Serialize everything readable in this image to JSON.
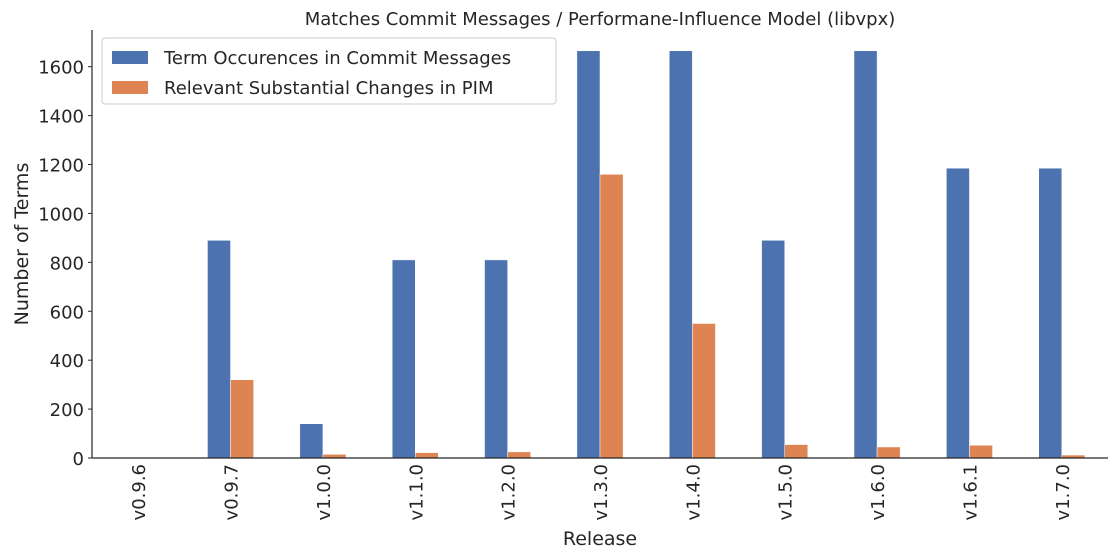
{
  "chart_data": {
    "type": "bar",
    "title": "Matches Commit Messages / Performane-Influence Model (libvpx)",
    "x_label": "Release",
    "y_label": "Number of Terms",
    "categories": [
      "v0.9.6",
      "v0.9.7",
      "v1.0.0",
      "v1.1.0",
      "v1.2.0",
      "v1.3.0",
      "v1.4.0",
      "v1.5.0",
      "v1.6.0",
      "v1.6.1",
      "v1.7.0"
    ],
    "series": [
      {
        "name": "Term Occurences in Commit Messages",
        "color": "#4c72b0",
        "values": [
          0,
          890,
          140,
          810,
          810,
          1665,
          1665,
          890,
          1665,
          1185,
          1185
        ]
      },
      {
        "name": "Relevant Substantial Changes in PIM",
        "color": "#dd8452",
        "values": [
          0,
          320,
          15,
          22,
          25,
          1160,
          550,
          55,
          45,
          52,
          12
        ]
      }
    ],
    "ylim": [
      0,
      1750
    ],
    "yticks": [
      0,
      200,
      400,
      600,
      800,
      1000,
      1200,
      1400,
      1600
    ],
    "grid": false,
    "legend": "upper left"
  }
}
